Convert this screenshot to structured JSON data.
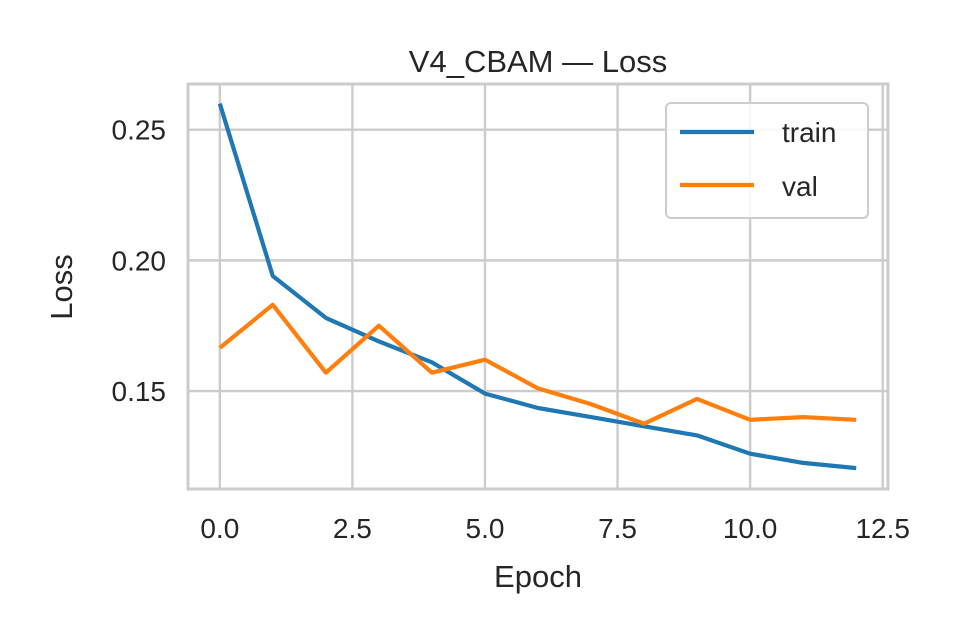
{
  "chart_data": {
    "type": "line",
    "title": "V4_CBAM — Loss",
    "xlabel": "Epoch",
    "ylabel": "Loss",
    "xlim": [
      -0.6,
      12.6
    ],
    "ylim": [
      0.1125,
      0.2675
    ],
    "xticks": [
      0.0,
      2.5,
      5.0,
      7.5,
      10.0,
      12.5
    ],
    "xtick_labels": [
      "0.0",
      "2.5",
      "5.0",
      "7.5",
      "10.0",
      "12.5"
    ],
    "yticks": [
      0.15,
      0.2,
      0.25
    ],
    "ytick_labels": [
      "0.15",
      "0.20",
      "0.25"
    ],
    "grid": true,
    "legend_position": "top-right",
    "x": [
      0,
      1,
      2,
      3,
      4,
      5,
      6,
      7,
      8,
      9,
      10,
      11,
      12
    ],
    "series": [
      {
        "name": "train",
        "color": "#1f77b4",
        "values": [
          0.26,
          0.194,
          0.178,
          0.169,
          0.161,
          0.149,
          0.1435,
          0.14,
          0.1365,
          0.133,
          0.126,
          0.1225,
          0.1205
        ]
      },
      {
        "name": "val",
        "color": "#ff7f0e",
        "values": [
          0.1665,
          0.183,
          0.157,
          0.175,
          0.157,
          0.162,
          0.151,
          0.145,
          0.1375,
          0.147,
          0.139,
          0.14,
          0.139
        ]
      }
    ]
  }
}
